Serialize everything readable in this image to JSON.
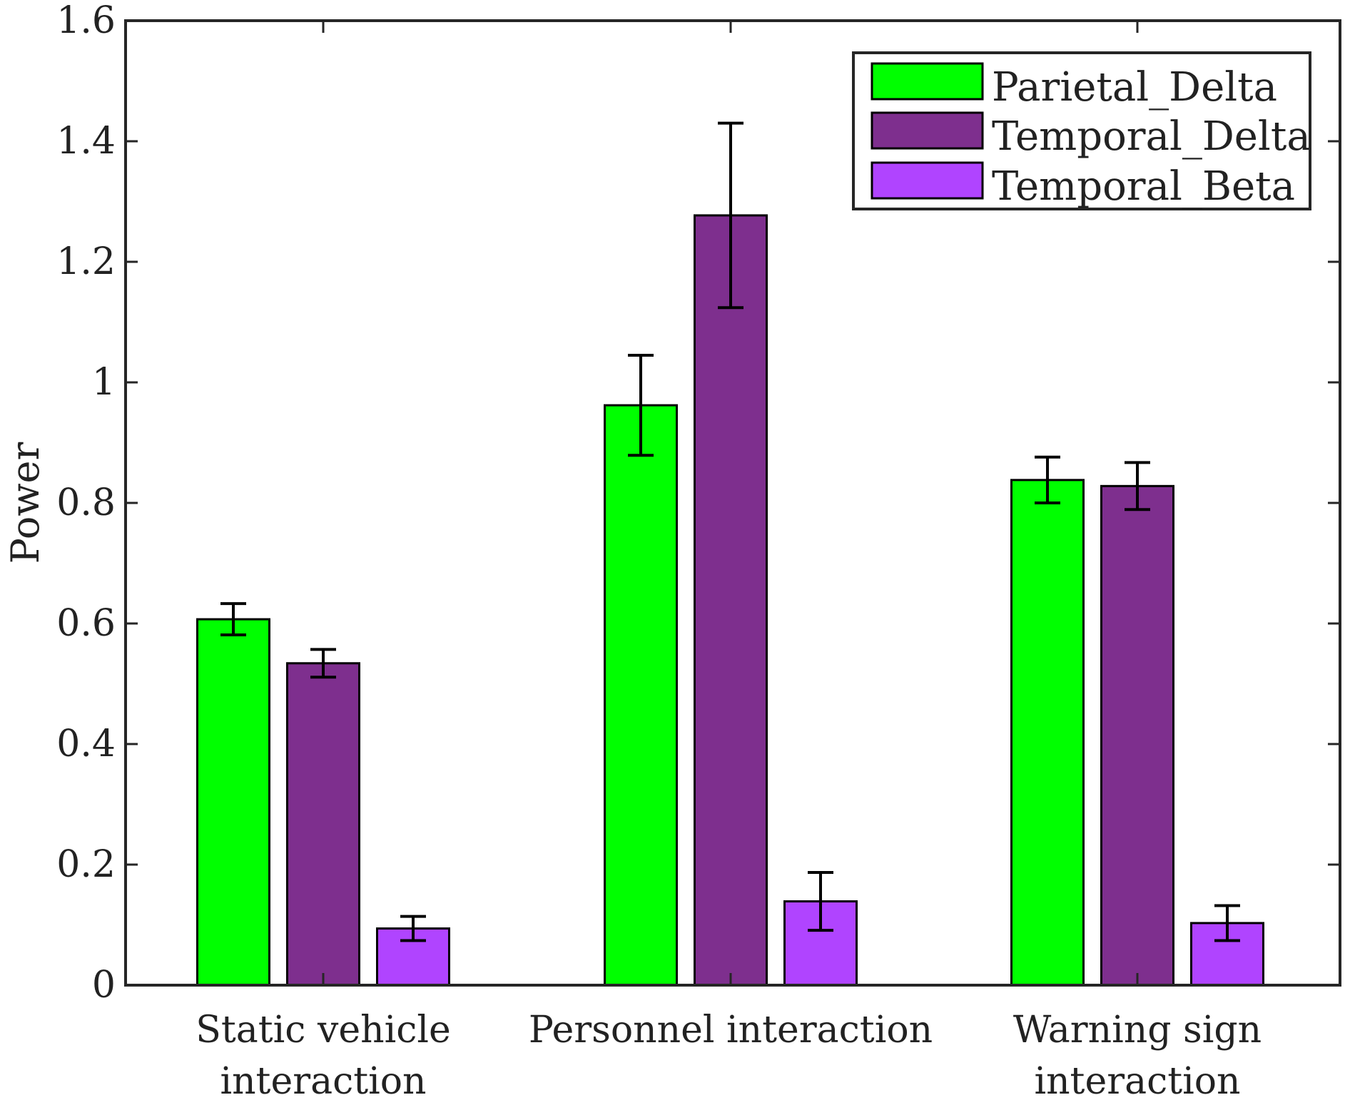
{
  "chart_data": {
    "type": "bar",
    "title": "",
    "xlabel": "",
    "ylabel": "Power",
    "ylim": [
      0,
      1.6
    ],
    "yticks": [
      {
        "value": 0,
        "label": "0"
      },
      {
        "value": 0.2,
        "label": "0.2"
      },
      {
        "value": 0.4,
        "label": "0.4"
      },
      {
        "value": 0.6,
        "label": "0.6"
      },
      {
        "value": 0.8,
        "label": "0.8"
      },
      {
        "value": 1.0,
        "label": "1"
      },
      {
        "value": 1.2,
        "label": "1.2"
      },
      {
        "value": 1.4,
        "label": "1.4"
      },
      {
        "value": 1.6,
        "label": "1.6"
      }
    ],
    "categories": [
      {
        "line1": "Static vehicle",
        "line2": "interaction"
      },
      {
        "line1": "Personnel interaction",
        "line2": ""
      },
      {
        "line1": "Warning sign",
        "line2": "interaction"
      }
    ],
    "grid": false,
    "legend_position": "top-right",
    "series": [
      {
        "name": "Parietal_Delta",
        "color": "#00ff00",
        "values": [
          0.607,
          0.962,
          0.838
        ],
        "errors": [
          0.026,
          0.083,
          0.038
        ]
      },
      {
        "name": "Temporal_Delta",
        "color": "#7e2f8e",
        "values": [
          0.534,
          1.277,
          0.828
        ],
        "errors": [
          0.023,
          0.153,
          0.039
        ]
      },
      {
        "name": "Temporal_Beta",
        "color": "#b044ff",
        "values": [
          0.094,
          0.139,
          0.103
        ],
        "errors": [
          0.02,
          0.048,
          0.029
        ]
      }
    ]
  }
}
